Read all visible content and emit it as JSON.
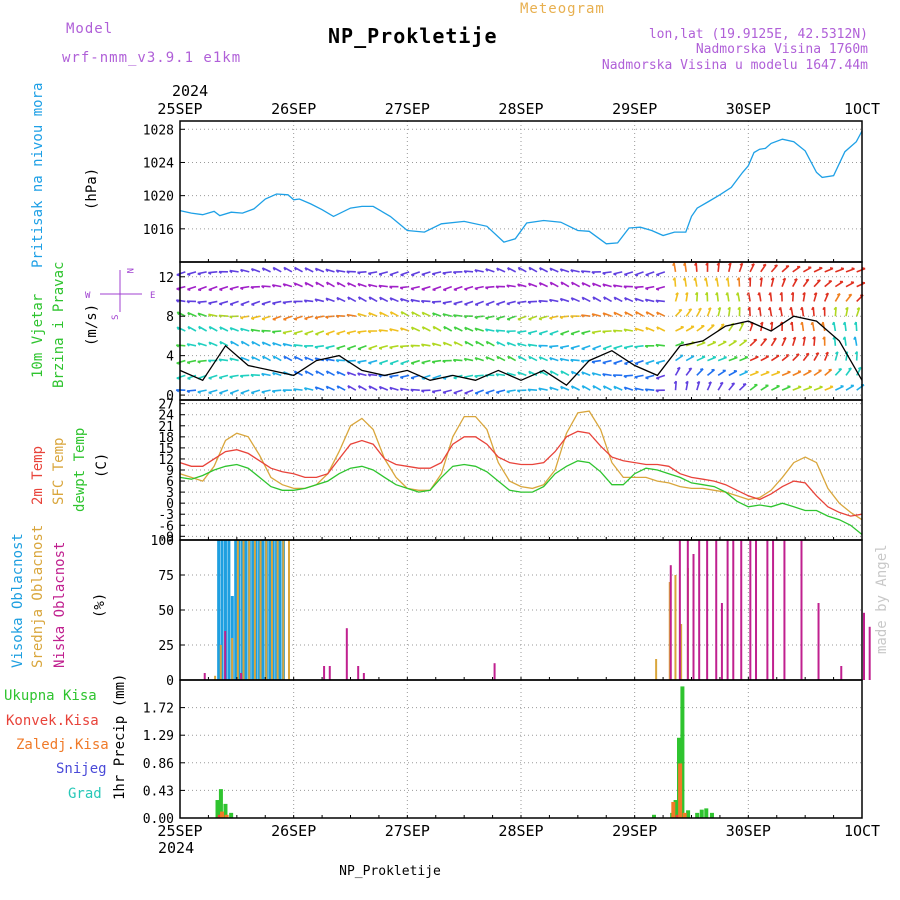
{
  "header": {
    "model_label": "Model",
    "model_name": "wrf-nmm_v3.9.1 e1km",
    "product": "Meteogram",
    "station": "NP_Prokletije",
    "lonlat": "lon,lat (19.9125E, 42.5312N)",
    "elevation": "Nadmorska Visina 1760m",
    "model_elevation": "Nadmorska Visina u modelu 1647.44m",
    "credit": "made by Angel",
    "footer_station": "NP_Prokletije"
  },
  "colors": {
    "pressure": "#1ea0e6",
    "temp2m": "#e8433a",
    "sfc_temp": "#d9a63c",
    "dewpoint": "#2fc42f",
    "cloud_high": "#1e9fe0",
    "cloud_mid": "#d9a63c",
    "cloud_low": "#c0208f",
    "precip_total": "#2fc42f",
    "precip_conv": "#e8433a",
    "precip_grid": "#f07a28",
    "snow": "#4a4ad8",
    "graupel": "#28c8b8",
    "wind_label": "#2fc42f",
    "compass": "#a040d0"
  },
  "chart_data": [
    {
      "type": "line",
      "panel": "pressure",
      "ylabel": "Pritisak na nivou mora",
      "unit": "(hPa)",
      "x_top_year": "2024",
      "x_ticks": [
        "25SEP",
        "26SEP",
        "27SEP",
        "28SEP",
        "29SEP",
        "30SEP",
        "1OCT"
      ],
      "ylim": [
        1012,
        1029
      ],
      "yticks": [
        1016,
        1020,
        1024,
        1028
      ],
      "series": [
        {
          "x": [
            0,
            0.1,
            0.2,
            0.3,
            0.35,
            0.45,
            0.55,
            0.65,
            0.75,
            0.85,
            0.95,
            1.0,
            1.05,
            1.15,
            1.25,
            1.35,
            1.5,
            1.6,
            1.7,
            1.85,
            2.0,
            2.15,
            2.3,
            2.5,
            2.7,
            2.85,
            2.95,
            3.05,
            3.2,
            3.35,
            3.5,
            3.6,
            3.75,
            3.85,
            3.95,
            4.05,
            4.15,
            4.25,
            4.35,
            4.45,
            4.5,
            4.55,
            4.65,
            4.75,
            4.85,
            4.95,
            5.0,
            5.05,
            5.1,
            5.15,
            5.2,
            5.3,
            5.4,
            5.5,
            5.6,
            5.65,
            5.75,
            5.85,
            5.95,
            6.0
          ],
          "y": [
            1018.2,
            1017.9,
            1017.7,
            1018.1,
            1017.6,
            1018.0,
            1017.9,
            1018.4,
            1019.6,
            1020.2,
            1020.1,
            1019.5,
            1019.6,
            1019.0,
            1018.3,
            1017.5,
            1018.5,
            1018.7,
            1018.7,
            1017.5,
            1015.8,
            1015.6,
            1016.6,
            1016.9,
            1016.3,
            1014.4,
            1014.8,
            1016.7,
            1017.0,
            1016.8,
            1015.8,
            1015.7,
            1014.2,
            1014.3,
            1016.1,
            1016.2,
            1015.8,
            1015.2,
            1015.6,
            1015.6,
            1017.5,
            1018.5,
            1019.3,
            1020.1,
            1021.0,
            1022.8,
            1023.6,
            1025.2,
            1025.6,
            1025.7,
            1026.3,
            1026.8,
            1026.5,
            1025.4,
            1022.8,
            1022.2,
            1022.4,
            1025.3,
            1026.5,
            1027.8
          ]
        }
      ]
    },
    {
      "type": "line",
      "panel": "wind",
      "ylabel": [
        "10m Vjetar",
        "Brzina i Pravac"
      ],
      "unit": "(m/s)",
      "compass": [
        "N",
        "W",
        "E",
        "S"
      ],
      "ylim": [
        -0.5,
        13.5
      ],
      "yticks": [
        0,
        4,
        8,
        12
      ],
      "series": [
        {
          "name": "wind_speed",
          "x": [
            0,
            0.2,
            0.4,
            0.6,
            0.8,
            1.0,
            1.2,
            1.4,
            1.6,
            1.8,
            2.0,
            2.2,
            2.4,
            2.6,
            2.8,
            3.0,
            3.2,
            3.4,
            3.6,
            3.8,
            4.0,
            4.2,
            4.4,
            4.6,
            4.8,
            5.0,
            5.2,
            5.4,
            5.6,
            5.8,
            6.0
          ],
          "y": [
            2.5,
            1.5,
            5.0,
            3.0,
            2.5,
            2.0,
            3.5,
            4.0,
            2.5,
            2.0,
            2.5,
            1.5,
            2.0,
            1.5,
            2.5,
            1.5,
            2.5,
            1.0,
            3.5,
            4.5,
            3.0,
            2.0,
            5.0,
            5.5,
            7.0,
            7.5,
            6.5,
            8.0,
            7.5,
            5.5,
            1.5
          ]
        }
      ]
    },
    {
      "type": "line",
      "panel": "temperature",
      "ylabel": [
        "2m Temp",
        "SFC Temp",
        "dewpt Temp"
      ],
      "unit": "(C)",
      "ylim": [
        -10,
        28
      ],
      "yticks": [
        -9,
        -6,
        -3,
        0,
        3,
        6,
        9,
        12,
        15,
        18,
        21,
        24,
        27
      ],
      "series": [
        {
          "name": "2m Temp",
          "x": [
            0,
            0.1,
            0.2,
            0.3,
            0.4,
            0.5,
            0.6,
            0.7,
            0.8,
            0.9,
            1.0,
            1.1,
            1.2,
            1.3,
            1.4,
            1.5,
            1.6,
            1.7,
            1.8,
            1.9,
            2.0,
            2.1,
            2.2,
            2.3,
            2.4,
            2.5,
            2.6,
            2.7,
            2.8,
            2.9,
            3.0,
            3.1,
            3.2,
            3.3,
            3.4,
            3.5,
            3.6,
            3.7,
            3.8,
            3.9,
            4.0,
            4.1,
            4.2,
            4.3,
            4.4,
            4.5,
            4.6,
            4.7,
            4.8,
            4.9,
            5.0,
            5.1,
            5.2,
            5.3,
            5.4,
            5.5,
            5.6,
            5.7,
            5.8,
            5.9,
            6.0
          ],
          "y": [
            11,
            10,
            10,
            12,
            14,
            14.5,
            13.5,
            11.5,
            9.5,
            8.5,
            8,
            7,
            7,
            8,
            12,
            16,
            17,
            16,
            12,
            10.5,
            10,
            9.5,
            9.5,
            11,
            16,
            18,
            18,
            16,
            12.5,
            11,
            10.5,
            10.5,
            11,
            14,
            18,
            19.5,
            19,
            15.5,
            12.5,
            11.5,
            11,
            10.5,
            10.5,
            10,
            8,
            7,
            6.5,
            6,
            5,
            3.5,
            2,
            1,
            2.5,
            4.5,
            6,
            5.5,
            2,
            -1,
            -2.5,
            -3.5,
            -3
          ]
        },
        {
          "name": "SFC Temp",
          "x": [
            0,
            0.1,
            0.2,
            0.3,
            0.4,
            0.5,
            0.6,
            0.7,
            0.8,
            0.9,
            1.0,
            1.1,
            1.2,
            1.3,
            1.4,
            1.5,
            1.6,
            1.7,
            1.8,
            1.9,
            2.0,
            2.1,
            2.2,
            2.3,
            2.4,
            2.5,
            2.6,
            2.7,
            2.8,
            2.9,
            3.0,
            3.1,
            3.2,
            3.3,
            3.4,
            3.5,
            3.6,
            3.7,
            3.8,
            3.9,
            4.0,
            4.1,
            4.2,
            4.3,
            4.4,
            4.5,
            4.6,
            4.7,
            4.8,
            4.9,
            5.0,
            5.1,
            5.2,
            5.3,
            5.4,
            5.5,
            5.6,
            5.7,
            5.8,
            5.9,
            6.0
          ],
          "y": [
            8,
            7,
            6,
            10,
            17,
            19,
            18,
            13,
            7,
            5,
            4,
            4,
            5,
            8,
            14,
            21,
            23,
            20,
            12,
            7,
            4,
            3.5,
            3.5,
            8,
            18,
            23.5,
            23.5,
            20,
            11,
            6,
            4.5,
            4,
            5,
            9,
            19,
            24.5,
            25,
            20,
            11,
            7,
            7,
            7,
            6,
            5.5,
            4.5,
            4,
            4,
            3.5,
            3,
            2,
            1,
            1.5,
            3.5,
            7,
            11,
            12.5,
            11,
            4,
            0,
            -2.5,
            -4.5
          ]
        },
        {
          "name": "dewpt Temp",
          "x": [
            0,
            0.1,
            0.2,
            0.3,
            0.4,
            0.5,
            0.6,
            0.7,
            0.8,
            0.9,
            1.0,
            1.1,
            1.2,
            1.3,
            1.4,
            1.5,
            1.6,
            1.7,
            1.8,
            1.9,
            2.0,
            2.1,
            2.2,
            2.3,
            2.4,
            2.5,
            2.6,
            2.7,
            2.8,
            2.9,
            3.0,
            3.1,
            3.2,
            3.3,
            3.4,
            3.5,
            3.6,
            3.7,
            3.8,
            3.9,
            4.0,
            4.1,
            4.2,
            4.3,
            4.4,
            4.5,
            4.6,
            4.7,
            4.8,
            4.9,
            5.0,
            5.1,
            5.2,
            5.3,
            5.4,
            5.5,
            5.6,
            5.7,
            5.8,
            5.9,
            6.0
          ],
          "y": [
            7,
            6.5,
            7.5,
            9,
            10,
            10.5,
            9.5,
            7,
            4.5,
            3.5,
            3.5,
            4,
            5,
            6,
            8,
            9.5,
            10,
            9,
            7,
            5,
            4,
            3,
            3.5,
            7,
            10,
            10.5,
            10,
            8.5,
            6,
            3.5,
            3,
            3,
            4.5,
            8,
            10,
            11.5,
            11,
            8.5,
            5,
            5,
            8,
            9.5,
            9,
            8,
            7,
            5.5,
            5,
            4.5,
            3,
            0.5,
            -1,
            -0.5,
            -1,
            0,
            -1,
            -2,
            -2,
            -3.5,
            -4.5,
            -6,
            -8.5
          ]
        }
      ]
    },
    {
      "type": "bar",
      "panel": "clouds",
      "ylabel": [
        "Visoka Oblacnost",
        "Srednja Oblacnost",
        "Niska Oblacnost"
      ],
      "unit": "(%)",
      "ylim": [
        0,
        100
      ],
      "yticks": [
        0,
        25,
        50,
        75,
        100
      ],
      "series": [
        {
          "name": "Visoka Oblacnost",
          "x": [
            0.34,
            0.37,
            0.4,
            0.43,
            0.46,
            0.49,
            0.52,
            0.55,
            0.58,
            0.61,
            0.64,
            0.67,
            0.7,
            0.73,
            0.76,
            0.79,
            0.82,
            0.85,
            0.88,
            0.91
          ],
          "y": [
            100,
            100,
            100,
            100,
            60,
            100,
            100,
            100,
            100,
            100,
            100,
            100,
            100,
            100,
            100,
            100,
            100,
            100,
            100,
            100
          ]
        },
        {
          "name": "Srednja Oblacnost",
          "x": [
            0.3,
            0.35,
            0.45,
            0.5,
            0.55,
            0.6,
            0.65,
            0.7,
            0.75,
            0.8,
            0.85,
            0.9,
            0.95,
            4.18,
            4.3,
            4.35,
            4.4,
            4.46
          ],
          "y": [
            3,
            25,
            30,
            100,
            100,
            100,
            100,
            100,
            100,
            100,
            100,
            100,
            100,
            15,
            70,
            75,
            40,
            80
          ]
        },
        {
          "name": "Niska Oblacnost",
          "x": [
            0.2,
            0.38,
            0.52,
            1.25,
            1.3,
            1.45,
            1.55,
            1.6,
            2.75,
            4.3,
            4.38,
            4.45,
            4.5,
            4.55,
            4.62,
            4.7,
            4.75,
            4.8,
            4.85,
            4.92,
            5.0,
            5.05,
            5.15,
            5.2,
            5.3,
            5.45,
            5.6,
            5.8,
            6.0,
            6.05
          ],
          "y": [
            5,
            35,
            5,
            10,
            10,
            37,
            10,
            5,
            12,
            82,
            100,
            100,
            90,
            100,
            100,
            100,
            55,
            100,
            100,
            100,
            100,
            100,
            100,
            100,
            100,
            100,
            55,
            10,
            48,
            38
          ]
        }
      ]
    },
    {
      "type": "bar",
      "panel": "precip",
      "ylabel": [
        "Ukupna Kisa",
        "Konvek.Kisa",
        "Zaledj.Kisa",
        "Snijeg",
        "Grad"
      ],
      "unit": "1hr Precip (mm)",
      "ylim": [
        0,
        2.15
      ],
      "yticks": [
        0,
        0.43,
        0.86,
        1.29,
        1.72
      ],
      "x_bottom_year": "2024",
      "series": [
        {
          "name": "Ukupna Kisa",
          "x": [
            0.33,
            0.36,
            0.4,
            0.45,
            4.17,
            4.33,
            4.36,
            4.39,
            4.42,
            4.47,
            4.55,
            4.59,
            4.63,
            4.68
          ],
          "y": [
            0.28,
            0.45,
            0.22,
            0.08,
            0.05,
            0.08,
            0.28,
            1.25,
            2.05,
            0.12,
            0.08,
            0.13,
            0.15,
            0.08
          ]
        },
        {
          "name": "Konvek.Kisa",
          "x": [
            0.35,
            4.38
          ],
          "y": [
            0.05,
            0.05
          ]
        },
        {
          "name": "Zaledj.Kisa",
          "x": [
            0.37,
            0.41,
            4.34,
            4.4,
            4.44
          ],
          "y": [
            0.1,
            0.05,
            0.25,
            0.85,
            0.08
          ]
        }
      ]
    }
  ]
}
